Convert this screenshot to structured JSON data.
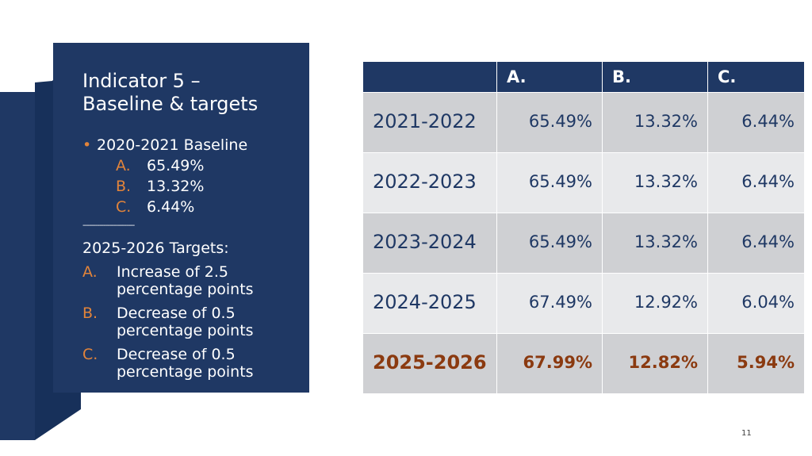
{
  "panel": {
    "title_line1": "Indicator 5 –",
    "title_line2": "Baseline & targets",
    "baseline_label": "2020-2021 Baseline",
    "baseline": [
      {
        "letter": "A.",
        "value": "65.49%"
      },
      {
        "letter": "B.",
        "value": "13.32%"
      },
      {
        "letter": "C.",
        "value": "6.44%"
      }
    ],
    "divider": "-------------------------",
    "targets_label": "2025-2026 Targets:",
    "targets": [
      {
        "letter": "A.",
        "text": "Increase of 2.5 percentage points"
      },
      {
        "letter": "B.",
        "text": "Decrease of 0.5 percentage points"
      },
      {
        "letter": "C.",
        "text": "Decrease of 0.5 percentage points"
      }
    ]
  },
  "table": {
    "headers": [
      "",
      "A.",
      "B.",
      "C."
    ],
    "rows": [
      {
        "year": "2021-2022",
        "a": "65.49%",
        "b": "13.32%",
        "c": "6.44%"
      },
      {
        "year": "2022-2023",
        "a": "65.49%",
        "b": "13.32%",
        "c": "6.44%"
      },
      {
        "year": "2023-2024",
        "a": "65.49%",
        "b": "13.32%",
        "c": "6.44%"
      },
      {
        "year": "2024-2025",
        "a": "67.49%",
        "b": "12.92%",
        "c": "6.04%"
      },
      {
        "year": "2025-2026",
        "a": "67.99%",
        "b": "12.82%",
        "c": "5.94%"
      }
    ]
  },
  "page_number": "11",
  "colors": {
    "navy": "#1f3864",
    "accent_orange": "#e2843a",
    "highlight_brown": "#8b3a10",
    "row_dark": "#cfd0d3",
    "row_light": "#e8e9eb"
  }
}
